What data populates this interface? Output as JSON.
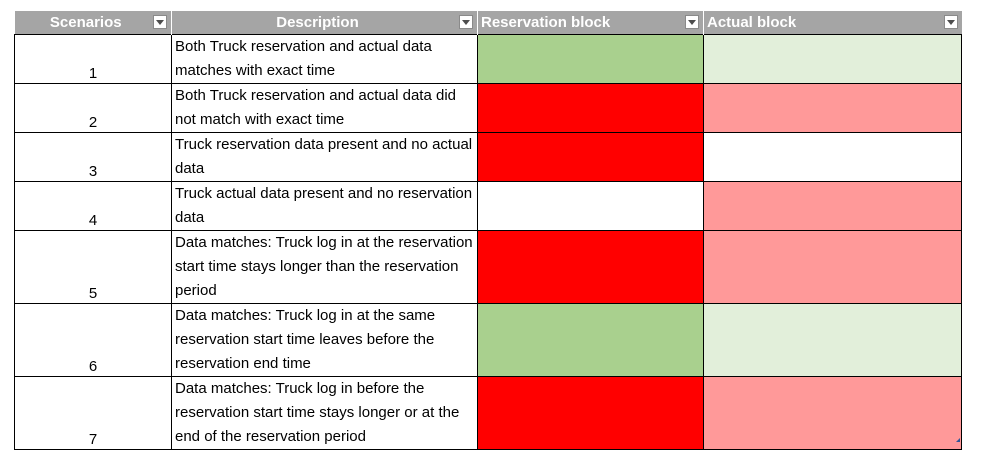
{
  "table": {
    "headers": [
      {
        "label": "Scenarios"
      },
      {
        "label": "Description"
      },
      {
        "label": "Reservation block"
      },
      {
        "label": "Actual block"
      }
    ],
    "rows": [
      {
        "scenario": "1",
        "description": "Both Truck reservation and actual data matches with exact time",
        "reservation_color": "#a9d08e",
        "actual_color": "#e2efda"
      },
      {
        "scenario": "2",
        "description": "Both Truck reservation and actual data did not match with exact time",
        "reservation_color": "#ff0000",
        "actual_color": "#ff9999"
      },
      {
        "scenario": "3",
        "description": "Truck reservation data present and no actual data",
        "reservation_color": "#ff0000",
        "actual_color": "#ffffff"
      },
      {
        "scenario": "4",
        "description": "Truck actual data present and no reservation data",
        "reservation_color": "#ffffff",
        "actual_color": "#ff9999"
      },
      {
        "scenario": "5",
        "description": "Data matches: Truck log in at the reservation start time stays longer than the reservation period",
        "reservation_color": "#ff0000",
        "actual_color": "#ff9999"
      },
      {
        "scenario": "6",
        "description": "Data matches: Truck log in at the same reservation start time leaves before the reservation end time",
        "reservation_color": "#a9d08e",
        "actual_color": "#e2efda"
      },
      {
        "scenario": "7",
        "description": "Data matches: Truck log in before the reservation start time stays longer or at the end of the reservation period",
        "reservation_color": "#ff0000",
        "actual_color": "#ff9999"
      }
    ]
  },
  "colors": {
    "header_bg": "#a5a5a5",
    "green": "#a9d08e",
    "light_green": "#e2efda",
    "red": "#ff0000",
    "pink": "#ff9999"
  },
  "icons": {
    "filter": "filter-dropdown-icon"
  }
}
